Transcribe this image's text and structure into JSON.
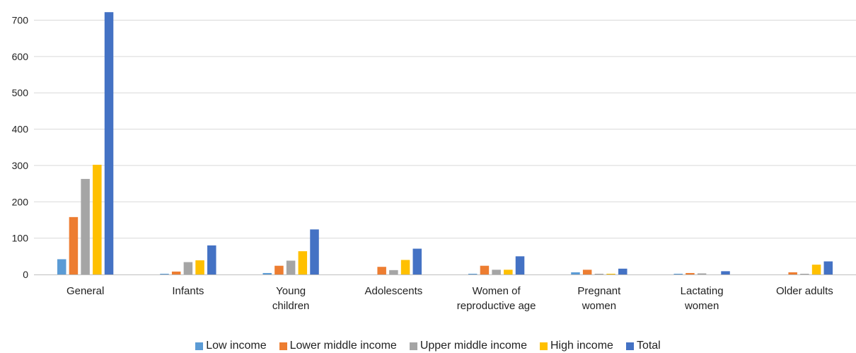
{
  "chart_data": {
    "type": "bar",
    "title": "",
    "xlabel": "",
    "ylabel": "",
    "ylim": [
      0,
      700
    ],
    "yticks": [
      "0",
      "100",
      "200",
      "300",
      "400",
      "500",
      "600",
      "700"
    ],
    "grid": true,
    "legend_position": "bottom",
    "categories": [
      [
        "General"
      ],
      [
        "Infants"
      ],
      [
        "Young",
        "children"
      ],
      [
        "Adolescents"
      ],
      [
        "Women of",
        "reproductive age"
      ],
      [
        "Pregnant",
        "women"
      ],
      [
        "Lactating",
        "women"
      ],
      [
        "Older adults"
      ]
    ],
    "series": [
      {
        "name": "Low income",
        "color": "#5B9BD5",
        "values": [
          42,
          2,
          4,
          0,
          2,
          6,
          2,
          0
        ]
      },
      {
        "name": "Lower middle income",
        "color": "#ED7D31",
        "values": [
          158,
          8,
          24,
          21,
          24,
          13,
          4,
          6
        ]
      },
      {
        "name": "Upper middle income",
        "color": "#A5A5A5",
        "values": [
          263,
          34,
          38,
          12,
          13,
          2,
          3,
          2
        ]
      },
      {
        "name": "High income",
        "color": "#FFC000",
        "values": [
          302,
          39,
          64,
          40,
          13,
          2,
          0,
          27
        ]
      },
      {
        "name": "Total",
        "color": "#4472C4",
        "values": [
          722,
          80,
          124,
          71,
          50,
          16,
          9,
          36
        ]
      }
    ]
  }
}
